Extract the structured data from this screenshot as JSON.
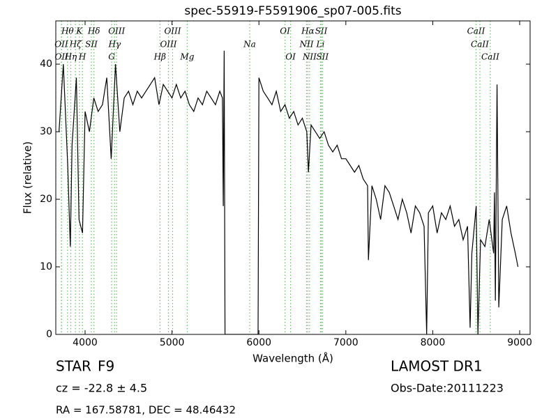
{
  "chart_data": {
    "type": "line",
    "title": "spec-55919-F5591906_sp07-005.fits",
    "xlabel": "Wavelength (Å)",
    "ylabel": "Flux (relative)",
    "color": "#000000",
    "line_color": "#66bb66",
    "xlim": [
      3663,
      9120
    ],
    "ylim": [
      0,
      46.4
    ],
    "xticks": [
      4000,
      5000,
      6000,
      7000,
      8000,
      9000
    ],
    "yticks": [
      0,
      10,
      20,
      30,
      40
    ],
    "x": [
      3700,
      3750,
      3800,
      3830,
      3850,
      3900,
      3930,
      3970,
      4000,
      4050,
      4100,
      4150,
      4200,
      4250,
      4300,
      4350,
      4400,
      4450,
      4500,
      4550,
      4600,
      4650,
      4700,
      4750,
      4800,
      4850,
      4900,
      4950,
      5000,
      5050,
      5100,
      5150,
      5200,
      5250,
      5300,
      5350,
      5400,
      5450,
      5500,
      5550,
      5580,
      5590,
      5600,
      5610,
      5700,
      5800,
      5900,
      5990,
      6000,
      6050,
      6100,
      6150,
      6200,
      6250,
      6300,
      6350,
      6400,
      6450,
      6500,
      6550,
      6570,
      6600,
      6650,
      6700,
      6750,
      6800,
      6850,
      6900,
      6950,
      7000,
      7050,
      7100,
      7150,
      7200,
      7250,
      7260,
      7300,
      7350,
      7400,
      7450,
      7500,
      7550,
      7600,
      7650,
      7700,
      7750,
      7800,
      7850,
      7900,
      7930,
      7950,
      8000,
      8050,
      8100,
      8150,
      8200,
      8250,
      8300,
      8350,
      8400,
      8430,
      8450,
      8500,
      8520,
      8550,
      8600,
      8650,
      8700,
      8710,
      8720,
      8740,
      8760,
      8800,
      8850,
      8900,
      8950,
      8980
    ],
    "values": [
      30,
      40,
      25,
      13,
      28,
      38,
      17,
      15,
      33,
      30,
      35,
      33,
      34,
      38,
      26,
      40,
      30,
      35,
      36,
      34,
      36,
      35,
      36,
      37,
      38,
      34,
      37,
      36,
      35,
      37,
      35,
      36,
      34,
      33,
      35,
      34,
      36,
      35,
      34,
      36,
      35,
      19,
      42,
      0,
      0,
      0,
      0,
      0,
      38,
      36,
      35,
      34,
      36,
      33,
      34,
      32,
      33,
      31,
      32,
      30,
      24,
      31,
      30,
      29,
      30,
      28,
      27,
      28,
      26,
      26,
      25,
      24,
      25,
      23,
      22,
      11,
      22,
      20,
      17,
      22,
      21,
      19,
      17,
      20,
      18,
      15,
      19,
      18,
      16,
      0,
      18,
      19,
      15,
      18,
      17,
      19,
      16,
      17,
      14,
      16,
      1,
      12,
      19,
      0,
      14,
      13,
      17,
      12,
      21,
      5,
      37,
      4,
      17,
      19,
      15,
      12,
      10
    ],
    "lines": [
      {
        "label": "Hθ",
        "x": 3798
      },
      {
        "label": "K",
        "x": 3934
      },
      {
        "label": "Hδ",
        "x": 4102
      },
      {
        "label": "OIII",
        "x": 4363
      },
      {
        "label": "OIII",
        "x": 5007
      },
      {
        "label": "OI",
        "x": 6300
      },
      {
        "label": "Hα",
        "x": 6563
      },
      {
        "label": "SII",
        "x": 6717
      },
      {
        "label": "CaII",
        "x": 8498
      },
      {
        "label": "OII",
        "x": 3727
      },
      {
        "label": "Hζ",
        "x": 3889
      },
      {
        "label": "SII",
        "x": 4072
      },
      {
        "label": "Hγ",
        "x": 4340
      },
      {
        "label": "OIII",
        "x": 4959
      },
      {
        "label": "Na",
        "x": 5894
      },
      {
        "label": "NII",
        "x": 6548
      },
      {
        "label": "Li",
        "x": 6708
      },
      {
        "label": "CaII",
        "x": 8542
      },
      {
        "label": "OII",
        "x": 3729
      },
      {
        "label": "Hη",
        "x": 3835
      },
      {
        "label": "H",
        "x": 3969
      },
      {
        "label": "G",
        "x": 4305
      },
      {
        "label": "Hβ",
        "x": 4861
      },
      {
        "label": "Mg",
        "x": 5175
      },
      {
        "label": "OI",
        "x": 6364
      },
      {
        "label": "NII",
        "x": 6583
      },
      {
        "label": "SII",
        "x": 6731
      },
      {
        "label": "CaII",
        "x": 8662
      }
    ],
    "object_class": "STAR",
    "subclass": "F9",
    "redshift": "cz = -22.8 ± 4.5",
    "coords": "RA = 167.58781, DEC = 48.46432",
    "survey": "LAMOST DR1",
    "obs_date": "Obs-Date:20111223"
  }
}
